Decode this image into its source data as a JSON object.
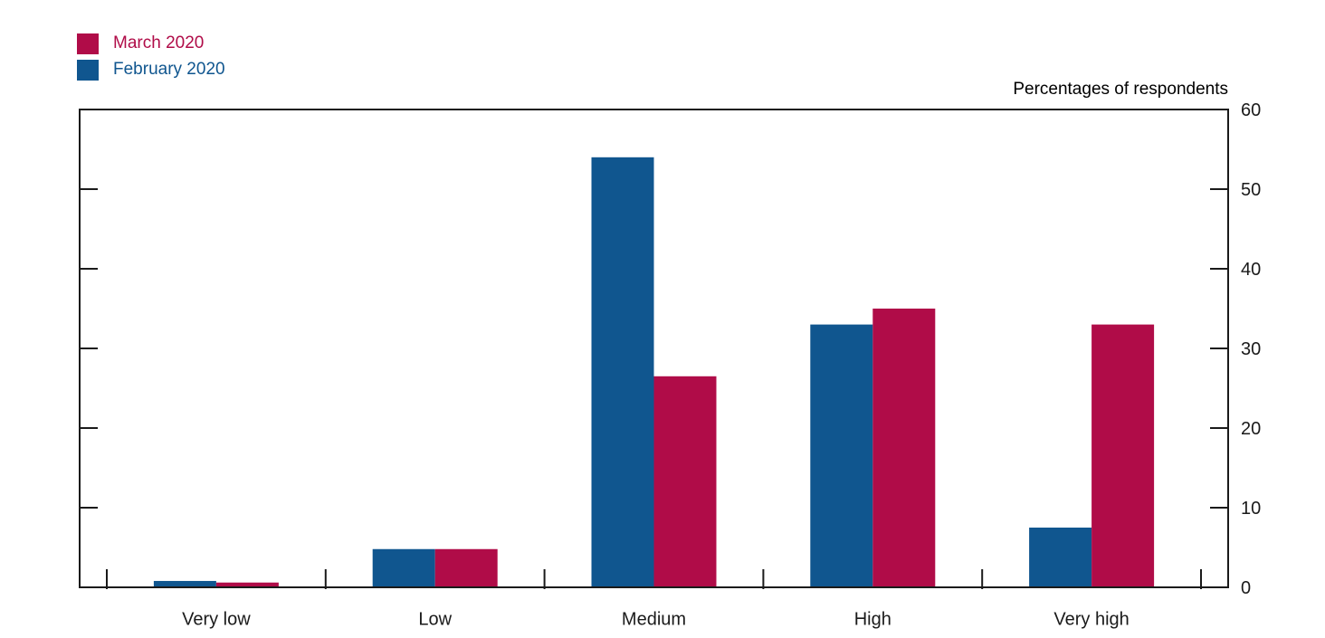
{
  "page": {
    "background_color": "#ffffff"
  },
  "legend": {
    "items": [
      {
        "id": "march-2020",
        "label": "March 2020",
        "color": "#b00c48"
      },
      {
        "id": "february-2020",
        "label": "February 2020",
        "color": "#10568f"
      }
    ]
  },
  "chart_data": {
    "type": "bar",
    "title": "",
    "axis_title": "Percentages of respondents",
    "categories": [
      "Very low",
      "Low",
      "Medium",
      "High",
      "Very high"
    ],
    "series": [
      {
        "name": "February 2020",
        "color": "#10568f",
        "values": [
          0.8,
          4.8,
          54,
          33,
          7.5
        ]
      },
      {
        "name": "March 2020",
        "color": "#b00c48",
        "values": [
          0.6,
          4.8,
          26.5,
          35,
          33
        ]
      }
    ],
    "ylim": [
      0,
      60
    ],
    "yticks": [
      0,
      10,
      20,
      30,
      40,
      50,
      60
    ],
    "grid": false,
    "legend_position": "top-left",
    "axis_color": "#1a1a1a",
    "tick_label_color": "#1a1a1a"
  }
}
